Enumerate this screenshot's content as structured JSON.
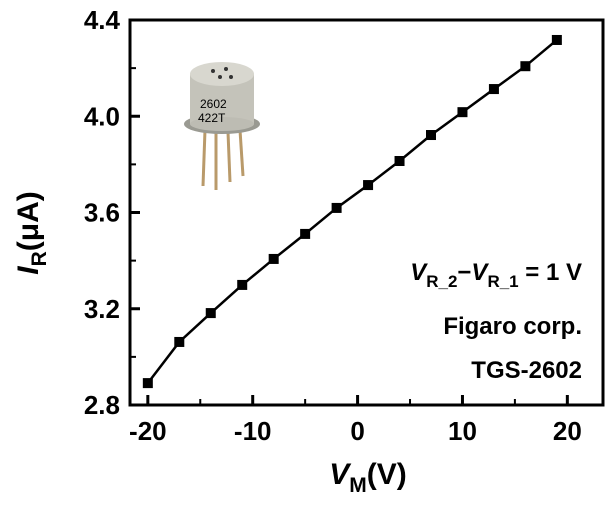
{
  "chart_data": {
    "type": "line",
    "x_label": {
      "symbol": "V",
      "subscript": "M",
      "unit": "(V)"
    },
    "y_label": {
      "symbol": "I",
      "subscript": "R",
      "unit": "(μA)"
    },
    "annotation": {
      "line1": [
        "V",
        "R_2",
        "−",
        "V",
        "R_1",
        " = 1 V"
      ],
      "line2": "Figaro corp.",
      "line3": "TGS-2602"
    },
    "x": [
      -20,
      -17,
      -14,
      -11,
      -8,
      -5,
      -2,
      1,
      4,
      7,
      10,
      13,
      16,
      19
    ],
    "series": [
      {
        "color": "#000000",
        "values": [
          2.891,
          3.062,
          3.182,
          3.299,
          3.407,
          3.511,
          3.619,
          3.714,
          3.814,
          3.922,
          4.017,
          4.113,
          4.208,
          4.317
        ]
      }
    ],
    "xlim": [
      -21.7,
      23.4
    ],
    "ylim": [
      2.8,
      4.4
    ],
    "xticks": [
      -20,
      -10,
      0,
      10,
      20
    ],
    "xminorticks": [
      -15,
      -5,
      5,
      15
    ],
    "yticks": [
      2.8,
      3.2,
      3.6,
      {
        "value": 4.0,
        "label": "4.0"
      },
      4.4
    ],
    "yminorticks": [
      3.0,
      3.4,
      3.8,
      4.2
    ]
  }
}
